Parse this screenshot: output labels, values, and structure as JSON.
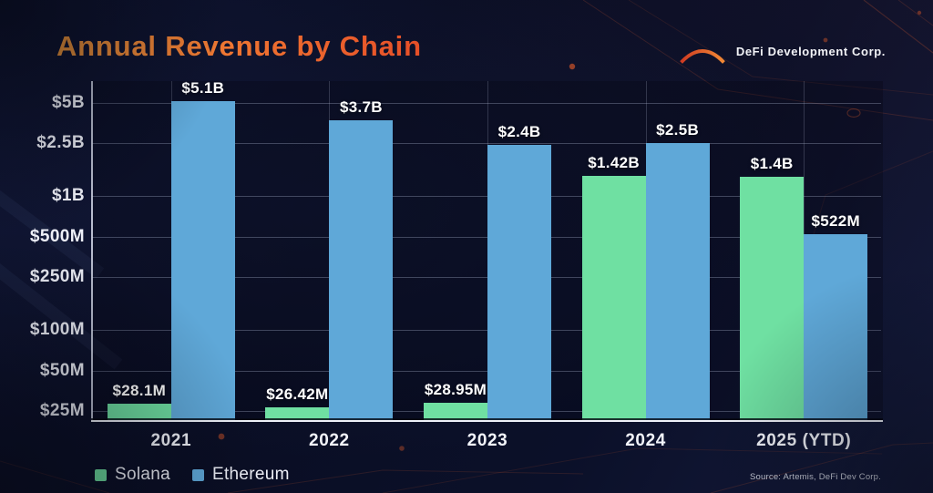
{
  "title": "Annual Revenue by Chain",
  "brand": {
    "name": "DeFi Development Corp.",
    "icon": "bridge-arch-icon"
  },
  "source_note": "Source: Artemis, DeFi Dev Corp.",
  "colors": {
    "solana": "#6fe0a2",
    "ethereum": "#5fa8d8",
    "title_gradient_start": "#f49a3d",
    "title_gradient_end": "#e64f28",
    "logo_gradient_start": "#cf3b22",
    "logo_gradient_end": "#f28a35",
    "background": "#0b102a",
    "axis": "#eef1f8",
    "gridline": "rgba(190,200,225,0.30)",
    "text": "#f3f4f9"
  },
  "chart_data": {
    "type": "bar",
    "title": "Annual Revenue by Chain",
    "y_scale": "log",
    "grid": true,
    "legend_position": "bottom-left",
    "y_axis": {
      "unit": "USD revenue",
      "min_m": 21,
      "max_m": 5500,
      "ticks": [
        {
          "label": "$5B",
          "value_m": 5000
        },
        {
          "label": "$2.5B",
          "value_m": 2500
        },
        {
          "label": "$1B",
          "value_m": 1000
        },
        {
          "label": "$500M",
          "value_m": 500
        },
        {
          "label": "$250M",
          "value_m": 250
        },
        {
          "label": "$100M",
          "value_m": 100
        },
        {
          "label": "$50M",
          "value_m": 50
        },
        {
          "label": "$25M",
          "value_m": 25
        }
      ]
    },
    "categories": [
      "2021",
      "2022",
      "2023",
      "2024",
      "2025 (YTD)"
    ],
    "series": [
      {
        "name": "Solana",
        "color": "#6fe0a2",
        "values_m": [
          28.1,
          26.42,
          28.95,
          1420,
          1400
        ],
        "labels": [
          "$28.1M",
          "$26.42M",
          "$28.95M",
          "$1.42B",
          "$1.4B"
        ]
      },
      {
        "name": "Ethereum",
        "color": "#5fa8d8",
        "values_m": [
          5100,
          3700,
          2400,
          2500,
          522
        ],
        "labels": [
          "$5.1B",
          "$3.7B",
          "$2.4B",
          "$2.5B",
          "$522M"
        ]
      }
    ],
    "legend": [
      {
        "label": "Solana",
        "color": "#6fe0a2"
      },
      {
        "label": "Ethereum",
        "color": "#5fa8d8"
      }
    ]
  }
}
